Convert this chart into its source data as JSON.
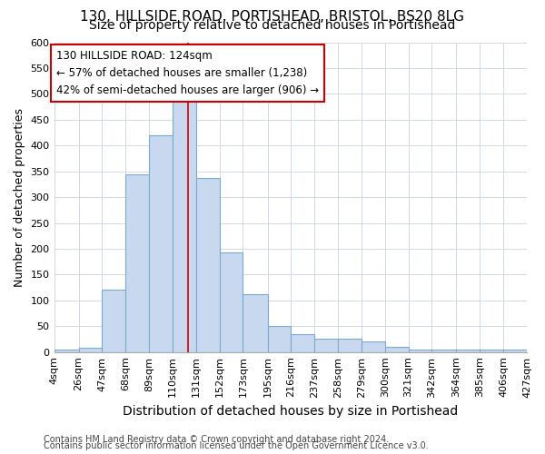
{
  "title1": "130, HILLSIDE ROAD, PORTISHEAD, BRISTOL, BS20 8LG",
  "title2": "Size of property relative to detached houses in Portishead",
  "xlabel": "Distribution of detached houses by size in Portishead",
  "ylabel": "Number of detached properties",
  "footer1": "Contains HM Land Registry data © Crown copyright and database right 2024.",
  "footer2": "Contains public sector information licensed under the Open Government Licence v3.0.",
  "annotation_title": "130 HILLSIDE ROAD: 124sqm",
  "annotation_line1": "← 57% of detached houses are smaller (1,238)",
  "annotation_line2": "42% of semi-detached houses are larger (906) →",
  "subject_value": 124,
  "bar_edges": [
    4,
    26,
    47,
    68,
    89,
    110,
    131,
    152,
    173,
    195,
    216,
    237,
    258,
    279,
    300,
    321,
    342,
    364,
    385,
    406,
    427
  ],
  "bar_heights": [
    5,
    8,
    120,
    345,
    420,
    488,
    337,
    193,
    112,
    50,
    35,
    26,
    25,
    20,
    10,
    4,
    5,
    4,
    4,
    5
  ],
  "tick_labels": [
    "4sqm",
    "26sqm",
    "47sqm",
    "68sqm",
    "89sqm",
    "110sqm",
    "131sqm",
    "152sqm",
    "173sqm",
    "195sqm",
    "216sqm",
    "237sqm",
    "258sqm",
    "279sqm",
    "300sqm",
    "321sqm",
    "342sqm",
    "364sqm",
    "385sqm",
    "406sqm",
    "427sqm"
  ],
  "bar_color": "#c8d8ee",
  "bar_edgecolor": "#7aabce",
  "vline_color": "#cc0000",
  "annotation_box_edgecolor": "#cc0000",
  "bg_color": "#ffffff",
  "plot_bg_color": "#ffffff",
  "grid_color": "#d0d8e8",
  "ylim": [
    0,
    600
  ],
  "yticks": [
    0,
    50,
    100,
    150,
    200,
    250,
    300,
    350,
    400,
    450,
    500,
    550,
    600
  ],
  "title1_fontsize": 11,
  "title2_fontsize": 10,
  "xlabel_fontsize": 10,
  "ylabel_fontsize": 9,
  "footer_fontsize": 7,
  "tick_fontsize": 8,
  "annot_fontsize": 8.5
}
